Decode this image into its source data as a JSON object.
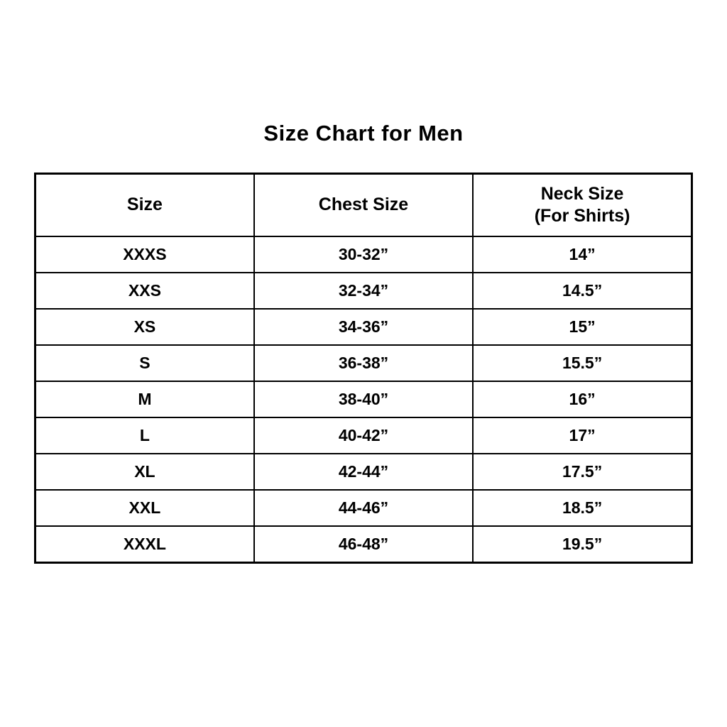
{
  "title": "Size Chart for Men",
  "table": {
    "headers": [
      {
        "label": "Size"
      },
      {
        "label": "Chest Size"
      },
      {
        "label": "Neck Size",
        "sublabel": "(For Shirts)"
      }
    ],
    "rows": [
      {
        "size": "XXXS",
        "chest": "30-32”",
        "neck": "14”"
      },
      {
        "size": "XXS",
        "chest": "32-34”",
        "neck": "14.5”"
      },
      {
        "size": "XS",
        "chest": "34-36”",
        "neck": "15”"
      },
      {
        "size": "S",
        "chest": "36-38”",
        "neck": "15.5”"
      },
      {
        "size": "M",
        "chest": "38-40”",
        "neck": "16”"
      },
      {
        "size": "L",
        "chest": "40-42”",
        "neck": "17”"
      },
      {
        "size": "XL",
        "chest": "42-44”",
        "neck": "17.5”"
      },
      {
        "size": "XXL",
        "chest": "44-46”",
        "neck": "18.5”"
      },
      {
        "size": "XXXL",
        "chest": "46-48”",
        "neck": "19.5”"
      }
    ]
  },
  "colors": {
    "background": "#ffffff",
    "text": "#000000",
    "border": "#000000"
  },
  "chart_data": {
    "type": "table",
    "title": "Size Chart for Men",
    "columns": [
      "Size",
      "Chest Size",
      "Neck Size (For Shirts)"
    ],
    "rows": [
      [
        "XXXS",
        "30-32”",
        "14”"
      ],
      [
        "XXS",
        "32-34”",
        "14.5”"
      ],
      [
        "XS",
        "34-36”",
        "15”"
      ],
      [
        "S",
        "36-38”",
        "15.5”"
      ],
      [
        "M",
        "38-40”",
        "16”"
      ],
      [
        "L",
        "40-42”",
        "17”"
      ],
      [
        "XL",
        "42-44”",
        "17.5”"
      ],
      [
        "XXL",
        "44-46”",
        "18.5”"
      ],
      [
        "XXXL",
        "46-48”",
        "19.5”"
      ]
    ],
    "layout": {
      "grid": true,
      "header_rows": 1,
      "alignment": "center"
    }
  }
}
